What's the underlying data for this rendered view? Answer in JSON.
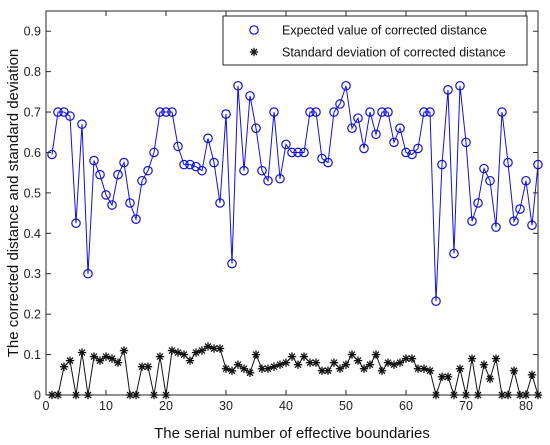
{
  "chart_data": {
    "type": "line",
    "xlabel": "The serial number of effective boundaries",
    "ylabel": "The corrected distance and standard deviation",
    "xlim": [
      0,
      82
    ],
    "ylim": [
      0,
      0.95
    ],
    "xticks": [
      0,
      10,
      20,
      30,
      40,
      50,
      60,
      70,
      80
    ],
    "yticks": [
      0,
      0.1,
      0.2,
      0.3,
      0.4,
      0.5,
      0.6,
      0.7,
      0.8,
      0.9
    ],
    "legend_position": "top-right",
    "grid": false,
    "x": [
      1,
      2,
      3,
      4,
      5,
      6,
      7,
      8,
      9,
      10,
      11,
      12,
      13,
      14,
      15,
      16,
      17,
      18,
      19,
      20,
      21,
      22,
      23,
      24,
      25,
      26,
      27,
      28,
      29,
      30,
      31,
      32,
      33,
      34,
      35,
      36,
      37,
      38,
      39,
      40,
      41,
      42,
      43,
      44,
      45,
      46,
      47,
      48,
      49,
      50,
      51,
      52,
      53,
      54,
      55,
      56,
      57,
      58,
      59,
      60,
      61,
      62,
      63,
      64,
      65,
      66,
      67,
      68,
      69,
      70,
      71,
      72,
      73,
      74,
      75,
      76,
      77,
      78,
      79,
      80,
      81,
      82
    ],
    "series": [
      {
        "name": "Expected value of corrected distance",
        "marker": "circle",
        "color": "#1010e0",
        "values": [
          0.595,
          0.7,
          0.7,
          0.69,
          0.425,
          0.67,
          0.3,
          0.58,
          0.545,
          0.495,
          0.47,
          0.545,
          0.575,
          0.475,
          0.435,
          0.53,
          0.555,
          0.6,
          0.7,
          0.7,
          0.7,
          0.615,
          0.57,
          0.57,
          0.565,
          0.555,
          0.635,
          0.575,
          0.475,
          0.695,
          0.325,
          0.765,
          0.555,
          0.74,
          0.66,
          0.555,
          0.53,
          0.7,
          0.535,
          0.62,
          0.6,
          0.6,
          0.6,
          0.7,
          0.7,
          0.585,
          0.575,
          0.7,
          0.72,
          0.765,
          0.66,
          0.685,
          0.61,
          0.7,
          0.645,
          0.7,
          0.7,
          0.625,
          0.66,
          0.6,
          0.595,
          0.61,
          0.7,
          0.7,
          0.232,
          0.57,
          0.755,
          0.35,
          0.765,
          0.625,
          0.43,
          0.475,
          0.56,
          0.53,
          0.415,
          0.7,
          0.575,
          0.43,
          0.46,
          0.53,
          0.42,
          0.57
        ]
      },
      {
        "name": "Standard deviation of corrected distance",
        "marker": "star",
        "color": "#111111",
        "values": [
          0.0,
          0.0,
          0.07,
          0.085,
          0.0,
          0.105,
          0.0,
          0.095,
          0.085,
          0.095,
          0.09,
          0.08,
          0.11,
          0.0,
          0.0,
          0.07,
          0.07,
          0.0,
          0.095,
          0.0,
          0.11,
          0.105,
          0.1,
          0.085,
          0.105,
          0.11,
          0.12,
          0.115,
          0.115,
          0.065,
          0.06,
          0.075,
          0.065,
          0.055,
          0.1,
          0.065,
          0.065,
          0.07,
          0.075,
          0.08,
          0.095,
          0.075,
          0.095,
          0.08,
          0.08,
          0.06,
          0.06,
          0.08,
          0.065,
          0.075,
          0.1,
          0.085,
          0.065,
          0.075,
          0.1,
          0.06,
          0.08,
          0.075,
          0.08,
          0.09,
          0.09,
          0.065,
          0.065,
          0.06,
          0.0,
          0.045,
          0.045,
          0.0,
          0.065,
          0.0,
          0.09,
          0.0,
          0.075,
          0.04,
          0.09,
          0.0,
          0.0,
          0.06,
          0.0,
          0.0,
          0.05,
          0.0
        ]
      }
    ]
  }
}
